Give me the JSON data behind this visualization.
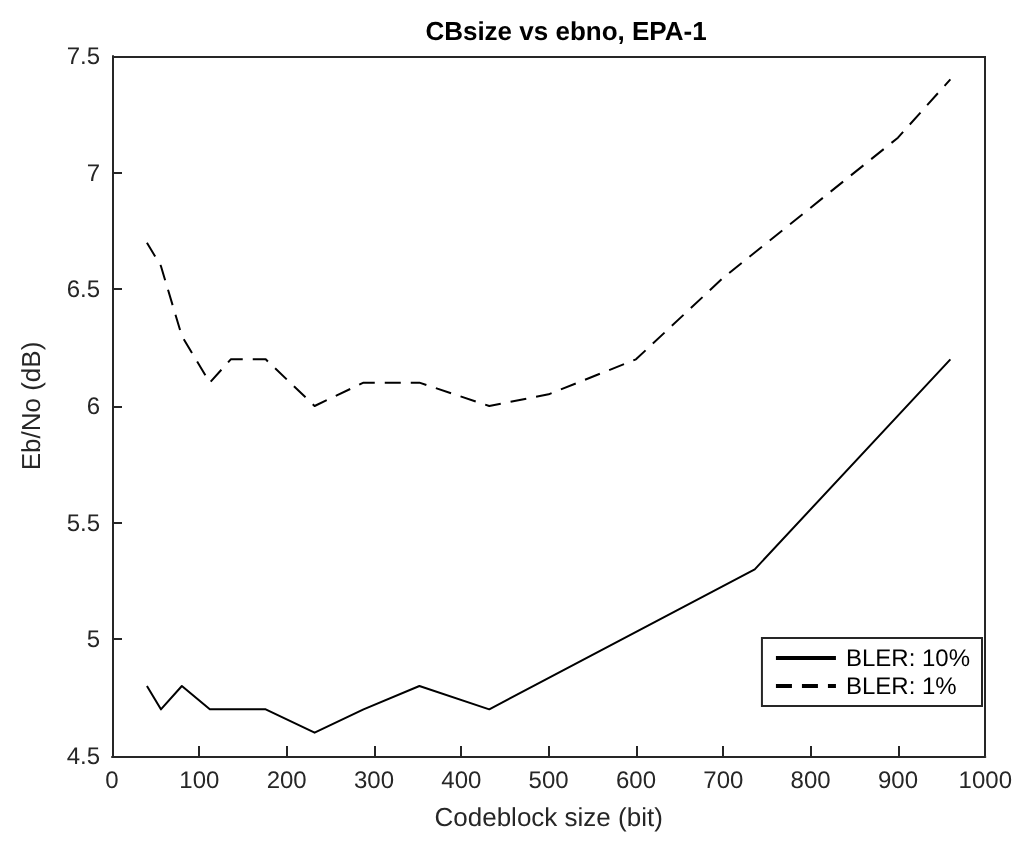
{
  "chart_data": {
    "type": "line",
    "title": "CBsize vs ebno, EPA-1",
    "xlabel": "Codeblock size (bit)",
    "ylabel": "Eb/No (dB)",
    "xlim": [
      0,
      1000
    ],
    "xticks": [
      0,
      100,
      200,
      300,
      400,
      500,
      600,
      700,
      800,
      900,
      1000
    ],
    "ylim": [
      4.5,
      7.5
    ],
    "yticks": [
      4.5,
      5,
      5.5,
      6,
      6.5,
      7,
      7.5
    ],
    "grid": false,
    "legend": "bottom right",
    "marker": "none",
    "series": [
      {
        "name": "BLER: 10%",
        "color": "#000000",
        "line_style": "solid",
        "x": [
          40,
          56,
          80,
          112,
          176,
          232,
          288,
          352,
          432,
          736,
          960
        ],
        "values": [
          4.8,
          4.7,
          4.8,
          4.7,
          4.7,
          4.6,
          4.7,
          4.8,
          4.7,
          5.3,
          6.2
        ]
      },
      {
        "name": "BLER: 1%",
        "color": "#000000",
        "line_style": "dashed",
        "x": [
          40,
          56,
          80,
          112,
          136,
          176,
          232,
          288,
          352,
          432,
          500,
          600,
          700,
          800,
          900,
          960
        ],
        "values": [
          6.7,
          6.6,
          6.3,
          6.1,
          6.2,
          6.2,
          6.0,
          6.1,
          6.1,
          6.0,
          6.05,
          6.2,
          6.55,
          6.85,
          7.15,
          7.4
        ]
      }
    ]
  }
}
